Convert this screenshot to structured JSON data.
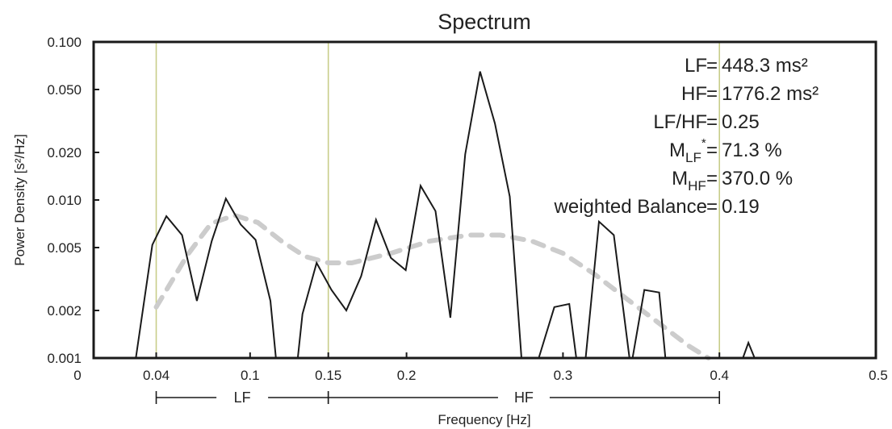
{
  "chart_data": {
    "type": "line",
    "title": "Spectrum",
    "xlabel": "Frequency [Hz]",
    "ylabel": "Power Density [s²/Hz]",
    "xlim": [
      0,
      0.5
    ],
    "ylim": [
      0.001,
      0.1
    ],
    "yscale": "log",
    "grid": false,
    "x_ticks": [
      "0",
      "0.04",
      "0.1",
      "0.15",
      "0.2",
      "0.3",
      "0.4",
      "0.5"
    ],
    "y_ticks": [
      "0.001",
      "0.002",
      "0.005",
      "0.010",
      "0.020",
      "0.050",
      "0.100"
    ],
    "band_lines": [
      0.04,
      0.15,
      0.4
    ],
    "bands": [
      {
        "label": "LF",
        "from": 0.04,
        "to": 0.15
      },
      {
        "label": "HF",
        "from": 0.15,
        "to": 0.4
      }
    ],
    "annotations": [
      {
        "label": "LF",
        "value": "448.3 ms²"
      },
      {
        "label": "HF",
        "value": "1776.2 ms²"
      },
      {
        "label": "LF/HF",
        "value": "0.25"
      },
      {
        "label": "M",
        "sub": "LF",
        "sup": "*",
        "value": "71.3 %"
      },
      {
        "label": "M",
        "sub": "HF",
        "value": "370.0 %"
      },
      {
        "label": "weighted Balance",
        "value": "0.19"
      }
    ],
    "series": [
      {
        "style": "solid",
        "color": "#1a1a1a",
        "segments": [
          [
            [
              0.027,
              0.001
            ],
            [
              0.0375,
              0.0052
            ],
            [
              0.0465,
              0.0079
            ],
            [
              0.0565,
              0.006
            ],
            [
              0.066,
              0.0023
            ],
            [
              0.0755,
              0.0055
            ],
            [
              0.0845,
              0.0102
            ],
            [
              0.094,
              0.007
            ],
            [
              0.1035,
              0.0056
            ],
            [
              0.113,
              0.0023
            ],
            [
              0.1165,
              0.001
            ]
          ],
          [
            [
              0.1305,
              0.001
            ],
            [
              0.1335,
              0.0019
            ],
            [
              0.1425,
              0.004
            ],
            [
              0.152,
              0.0027
            ],
            [
              0.1615,
              0.002
            ],
            [
              0.171,
              0.0033
            ],
            [
              0.1805,
              0.0075
            ],
            [
              0.19,
              0.0043
            ],
            [
              0.1995,
              0.0036
            ],
            [
              0.209,
              0.0123
            ],
            [
              0.2185,
              0.0085
            ],
            [
              0.228,
              0.0018
            ],
            [
              0.2375,
              0.0195
            ],
            [
              0.247,
              0.065
            ],
            [
              0.2565,
              0.0305
            ],
            [
              0.266,
              0.0105
            ],
            [
              0.2735,
              0.001
            ]
          ],
          [
            [
              0.2845,
              0.001
            ],
            [
              0.2945,
              0.0021
            ],
            [
              0.304,
              0.0022
            ],
            [
              0.3085,
              0.001
            ]
          ],
          [
            [
              0.3145,
              0.001
            ],
            [
              0.323,
              0.0073
            ],
            [
              0.3325,
              0.006
            ],
            [
              0.3425,
              0.001
            ]
          ],
          [
            [
              0.3445,
              0.001
            ],
            [
              0.352,
              0.0027
            ],
            [
              0.3615,
              0.0026
            ],
            [
              0.3655,
              0.001
            ]
          ],
          [
            [
              0.415,
              0.001
            ],
            [
              0.4185,
              0.00125
            ],
            [
              0.4225,
              0.001
            ]
          ]
        ]
      },
      {
        "style": "dashed",
        "color": "#cccccc",
        "segments": [
          [
            [
              0.04,
              0.0021
            ],
            [
              0.06,
              0.0045
            ],
            [
              0.075,
              0.0071
            ],
            [
              0.09,
              0.008
            ],
            [
              0.105,
              0.0072
            ],
            [
              0.12,
              0.0055
            ],
            [
              0.135,
              0.0044
            ],
            [
              0.15,
              0.004
            ],
            [
              0.165,
              0.004
            ],
            [
              0.19,
              0.0046
            ],
            [
              0.215,
              0.0055
            ],
            [
              0.24,
              0.006
            ],
            [
              0.26,
              0.006
            ],
            [
              0.28,
              0.0055
            ],
            [
              0.3,
              0.0046
            ],
            [
              0.32,
              0.0034
            ],
            [
              0.34,
              0.0024
            ],
            [
              0.36,
              0.0017
            ],
            [
              0.38,
              0.0012
            ],
            [
              0.393,
              0.001
            ]
          ]
        ]
      }
    ]
  }
}
